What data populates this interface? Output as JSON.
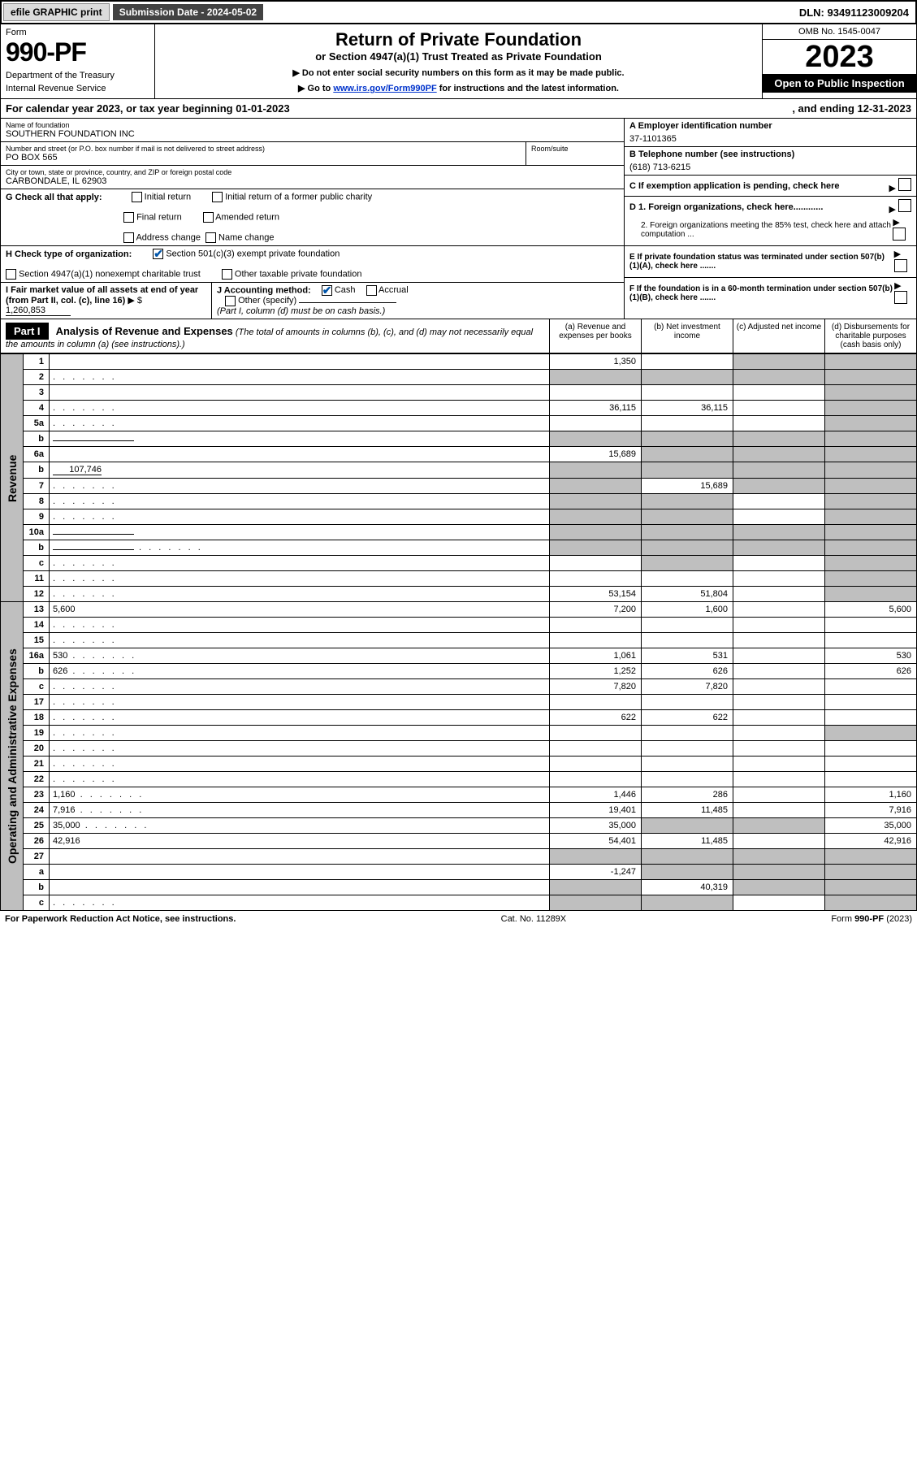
{
  "topBar": {
    "efile": "efile GRAPHIC print",
    "subDate": "Submission Date - 2024-05-02",
    "dln": "DLN: 93491123009204"
  },
  "header": {
    "formWord": "Form",
    "formNum": "990-PF",
    "dept": "Department of the Treasury",
    "irs": "Internal Revenue Service",
    "title": "Return of Private Foundation",
    "subtitle": "or Section 4947(a)(1) Trust Treated as Private Foundation",
    "note1": "▶ Do not enter social security numbers on this form as it may be made public.",
    "note2a": "▶ Go to ",
    "note2link": "www.irs.gov/Form990PF",
    "note2b": " for instructions and the latest information.",
    "omb": "OMB No. 1545-0047",
    "year": "2023",
    "openPub": "Open to Public Inspection"
  },
  "calYear": {
    "text1": "For calendar year 2023, or tax year beginning 01-01-2023",
    "text2": ", and ending 12-31-2023"
  },
  "foundation": {
    "nameLbl": "Name of foundation",
    "name": "SOUTHERN FOUNDATION INC",
    "addrLbl": "Number and street (or P.O. box number if mail is not delivered to street address)",
    "addr": "PO BOX 565",
    "roomLbl": "Room/suite",
    "cityLbl": "City or town, state or province, country, and ZIP or foreign postal code",
    "city": "CARBONDALE, IL  62903",
    "einLbl": "A Employer identification number",
    "ein": "37-1101365",
    "phoneLbl": "B Telephone number (see instructions)",
    "phone": "(618) 713-6215",
    "cLbl": "C If exemption application is pending, check here",
    "d1": "D 1. Foreign organizations, check here............",
    "d2": "2. Foreign organizations meeting the 85% test, check here and attach computation ...",
    "eLbl": "E  If private foundation status was terminated under section 507(b)(1)(A), check here .......",
    "fLbl": "F  If the foundation is in a 60-month termination under section 507(b)(1)(B), check here .......",
    "gLbl": "G Check all that apply:",
    "gInitial": "Initial return",
    "gInitialFormer": "Initial return of a former public charity",
    "gFinal": "Final return",
    "gAmended": "Amended return",
    "gAddr": "Address change",
    "gName": "Name change",
    "hLbl": "H Check type of organization:",
    "h501c3": "Section 501(c)(3) exempt private foundation",
    "h4947": "Section 4947(a)(1) nonexempt charitable trust",
    "hOther": "Other taxable private foundation",
    "iLbl": "I Fair market value of all assets at end of year (from Part II, col. (c), line 16)",
    "iVal": "1,260,853",
    "jLbl": "J Accounting method:",
    "jCash": "Cash",
    "jAccrual": "Accrual",
    "jOther": "Other (specify)",
    "jNote": "(Part I, column (d) must be on cash basis.)"
  },
  "partI": {
    "label": "Part I",
    "title": "Analysis of Revenue and Expenses",
    "titleNote": "(The total of amounts in columns (b), (c), and (d) may not necessarily equal the amounts in column (a) (see instructions).)",
    "colA": "(a) Revenue and expenses per books",
    "colB": "(b) Net investment income",
    "colC": "(c) Adjusted net income",
    "colD": "(d) Disbursements for charitable purposes (cash basis only)"
  },
  "sideLabels": {
    "revenue": "Revenue",
    "expenses": "Operating and Administrative Expenses"
  },
  "rows": [
    {
      "n": "1",
      "d": "",
      "a": "1,350",
      "b": "",
      "c": "",
      "shadeB": false,
      "shadeC": true,
      "shadeD": true
    },
    {
      "n": "2",
      "d": "",
      "dots": true,
      "a": "",
      "b": "",
      "c": "",
      "shadeA": true,
      "shadeB": true,
      "shadeC": true,
      "shadeD": true
    },
    {
      "n": "3",
      "d": "",
      "a": "",
      "b": "",
      "c": "",
      "shadeD": true
    },
    {
      "n": "4",
      "d": "",
      "dots": true,
      "a": "36,115",
      "b": "36,115",
      "c": "",
      "shadeD": true
    },
    {
      "n": "5a",
      "d": "",
      "dots": true,
      "a": "",
      "b": "",
      "c": "",
      "shadeD": true
    },
    {
      "n": "b",
      "d": "",
      "inline": true,
      "a": "",
      "b": "",
      "c": "",
      "shadeA": true,
      "shadeB": true,
      "shadeC": true,
      "shadeD": true
    },
    {
      "n": "6a",
      "d": "",
      "a": "15,689",
      "b": "",
      "c": "",
      "shadeB": true,
      "shadeC": true,
      "shadeD": true
    },
    {
      "n": "b",
      "d": "",
      "inlineVal": "107,746",
      "a": "",
      "b": "",
      "c": "",
      "shadeA": true,
      "shadeB": true,
      "shadeC": true,
      "shadeD": true
    },
    {
      "n": "7",
      "d": "",
      "dots": true,
      "a": "",
      "b": "15,689",
      "c": "",
      "shadeA": true,
      "shadeC": true,
      "shadeD": true
    },
    {
      "n": "8",
      "d": "",
      "dots": true,
      "a": "",
      "b": "",
      "c": "",
      "shadeA": true,
      "shadeB": true,
      "shadeD": true
    },
    {
      "n": "9",
      "d": "",
      "dots": true,
      "a": "",
      "b": "",
      "c": "",
      "shadeA": true,
      "shadeB": true,
      "shadeD": true
    },
    {
      "n": "10a",
      "d": "",
      "inline": true,
      "a": "",
      "b": "",
      "c": "",
      "shadeA": true,
      "shadeB": true,
      "shadeC": true,
      "shadeD": true
    },
    {
      "n": "b",
      "d": "",
      "dots": true,
      "inline": true,
      "a": "",
      "b": "",
      "c": "",
      "shadeA": true,
      "shadeB": true,
      "shadeC": true,
      "shadeD": true
    },
    {
      "n": "c",
      "d": "",
      "dots": true,
      "a": "",
      "b": "",
      "c": "",
      "shadeB": true,
      "shadeD": true
    },
    {
      "n": "11",
      "d": "",
      "dots": true,
      "a": "",
      "b": "",
      "c": "",
      "shadeD": true
    },
    {
      "n": "12",
      "d": "",
      "dots": true,
      "a": "53,154",
      "b": "51,804",
      "c": "",
      "shadeD": true
    }
  ],
  "expRows": [
    {
      "n": "13",
      "d": "5,600",
      "a": "7,200",
      "b": "1,600",
      "c": ""
    },
    {
      "n": "14",
      "d": "",
      "dots": true,
      "a": "",
      "b": "",
      "c": ""
    },
    {
      "n": "15",
      "d": "",
      "dots": true,
      "a": "",
      "b": "",
      "c": ""
    },
    {
      "n": "16a",
      "d": "530",
      "dots": true,
      "a": "1,061",
      "b": "531",
      "c": ""
    },
    {
      "n": "b",
      "d": "626",
      "dots": true,
      "a": "1,252",
      "b": "626",
      "c": ""
    },
    {
      "n": "c",
      "d": "",
      "dots": true,
      "a": "7,820",
      "b": "7,820",
      "c": ""
    },
    {
      "n": "17",
      "d": "",
      "dots": true,
      "a": "",
      "b": "",
      "c": ""
    },
    {
      "n": "18",
      "d": "",
      "dots": true,
      "a": "622",
      "b": "622",
      "c": ""
    },
    {
      "n": "19",
      "d": "",
      "dots": true,
      "a": "",
      "b": "",
      "c": "",
      "shadeD": true
    },
    {
      "n": "20",
      "d": "",
      "dots": true,
      "a": "",
      "b": "",
      "c": ""
    },
    {
      "n": "21",
      "d": "",
      "dots": true,
      "a": "",
      "b": "",
      "c": ""
    },
    {
      "n": "22",
      "d": "",
      "dots": true,
      "a": "",
      "b": "",
      "c": ""
    },
    {
      "n": "23",
      "d": "1,160",
      "dots": true,
      "a": "1,446",
      "b": "286",
      "c": ""
    },
    {
      "n": "24",
      "d": "7,916",
      "dots": true,
      "a": "19,401",
      "b": "11,485",
      "c": ""
    },
    {
      "n": "25",
      "d": "35,000",
      "dots": true,
      "a": "35,000",
      "b": "",
      "c": "",
      "shadeB": true,
      "shadeC": true
    },
    {
      "n": "26",
      "d": "42,916",
      "a": "54,401",
      "b": "11,485",
      "c": ""
    },
    {
      "n": "27",
      "d": "",
      "a": "",
      "b": "",
      "c": "",
      "shadeA": true,
      "shadeB": true,
      "shadeC": true,
      "shadeD": true
    },
    {
      "n": "a",
      "d": "",
      "a": "-1,247",
      "b": "",
      "c": "",
      "shadeB": true,
      "shadeC": true,
      "shadeD": true
    },
    {
      "n": "b",
      "d": "",
      "a": "",
      "b": "40,319",
      "c": "",
      "shadeA": true,
      "shadeC": true,
      "shadeD": true
    },
    {
      "n": "c",
      "d": "",
      "dots": true,
      "a": "",
      "b": "",
      "c": "",
      "shadeA": true,
      "shadeB": true,
      "shadeD": true
    }
  ],
  "footer": {
    "left": "For Paperwork Reduction Act Notice, see instructions.",
    "mid": "Cat. No. 11289X",
    "right": "Form 990-PF (2023)"
  }
}
